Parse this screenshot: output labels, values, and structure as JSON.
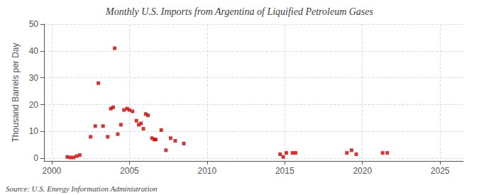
{
  "chart_data": {
    "type": "scatter",
    "title": "Monthly U.S. Imports from Argentina of Liquified Petroleum Gases",
    "ylabel": "Thousand Barrels per Day",
    "annotations": [
      "Source: U.S. Energy Information Administration"
    ],
    "color": "#cc0000",
    "marker": "square",
    "grid": true,
    "xlim": [
      1999.5,
      2026.5
    ],
    "ylim": [
      -1,
      50
    ],
    "xticks": [
      2000,
      2005,
      2010,
      2015,
      2020,
      2025
    ],
    "yticks": [
      0,
      10,
      20,
      30,
      40,
      50
    ],
    "x": [
      2001.0,
      2001.2,
      2001.4,
      2001.6,
      2001.8,
      2002.5,
      2002.8,
      2003.0,
      2003.3,
      2003.6,
      2003.8,
      2003.95,
      2004.05,
      2004.25,
      2004.45,
      2004.65,
      2004.85,
      2005.0,
      2005.2,
      2005.45,
      2005.6,
      2005.75,
      2005.9,
      2006.05,
      2006.2,
      2006.45,
      2006.6,
      2006.7,
      2007.05,
      2007.35,
      2007.65,
      2007.95,
      2008.5,
      2014.7,
      2014.9,
      2015.1,
      2015.5,
      2015.7,
      2019.0,
      2019.3,
      2019.6,
      2021.3,
      2021.6
    ],
    "values": [
      0.5,
      0.3,
      0.3,
      0.8,
      1.2,
      8.0,
      12.0,
      28.0,
      12.0,
      8.0,
      18.5,
      19.0,
      41.0,
      9.0,
      12.5,
      18.0,
      18.5,
      18.0,
      17.5,
      14.0,
      12.5,
      13.0,
      11.0,
      16.5,
      16.0,
      7.5,
      7.0,
      7.0,
      10.5,
      3.0,
      7.5,
      6.5,
      5.5,
      1.5,
      0.5,
      2.0,
      2.0,
      2.0,
      2.0,
      3.0,
      1.5,
      2.0,
      2.0
    ]
  }
}
